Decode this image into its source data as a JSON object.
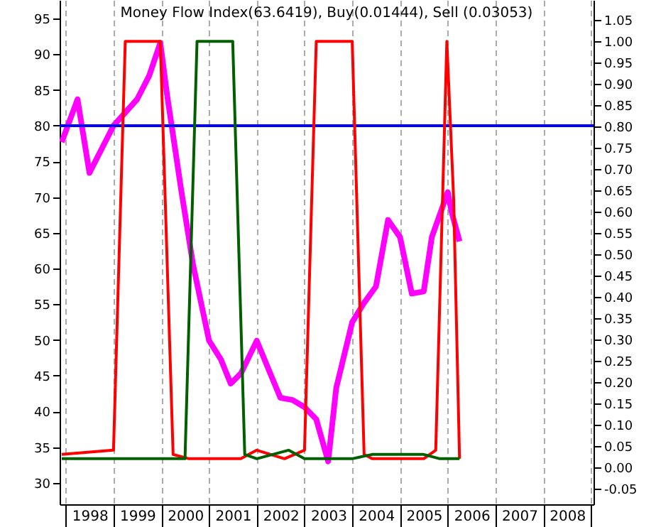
{
  "chart_data": {
    "type": "line",
    "title": "Money Flow Index(63.6419), Buy(0.01444), Sell (0.03053)",
    "xlim": [
      "1997-11-15",
      "2009-01-20"
    ],
    "xticks": [
      {
        "value": "1998-01-01",
        "label": null
      },
      {
        "value": "1998-07-02",
        "label": "1998"
      },
      {
        "value": "1999-01-01",
        "label": null
      },
      {
        "value": "1999-07-02",
        "label": "1999"
      },
      {
        "value": "2000-01-01",
        "label": null
      },
      {
        "value": "2000-07-02",
        "label": "2000"
      },
      {
        "value": "2001-01-01",
        "label": null
      },
      {
        "value": "2001-07-02",
        "label": "2001"
      },
      {
        "value": "2002-01-01",
        "label": null
      },
      {
        "value": "2002-07-02",
        "label": "2002"
      },
      {
        "value": "2003-01-01",
        "label": null
      },
      {
        "value": "2003-07-02",
        "label": "2003"
      },
      {
        "value": "2004-01-01",
        "label": null
      },
      {
        "value": "2004-07-02",
        "label": "2004"
      },
      {
        "value": "2005-01-01",
        "label": null
      },
      {
        "value": "2005-07-02",
        "label": "2005"
      },
      {
        "value": "2006-01-01",
        "label": null
      },
      {
        "value": "2006-07-02",
        "label": "2006"
      },
      {
        "value": "2007-01-01",
        "label": null
      },
      {
        "value": "2007-07-02",
        "label": "2007"
      },
      {
        "value": "2008-01-01",
        "label": null
      },
      {
        "value": "2008-07-02",
        "label": "2008"
      },
      {
        "value": "2009-01-01",
        "label": null
      }
    ],
    "ylim": [
      27,
      97.6
    ],
    "yticks": [
      30,
      35,
      40,
      45,
      50,
      55,
      60,
      65,
      70,
      75,
      80,
      85,
      90,
      95
    ],
    "y2lim": [
      -0.087,
      1.097
    ],
    "y2ticks": [
      {
        "value": -0.05,
        "label": "-0.05"
      },
      {
        "value": 0,
        "label": "0.00"
      },
      {
        "value": 0.05,
        "label": "0.05"
      },
      {
        "value": 0.1,
        "label": "0.10"
      },
      {
        "value": 0.15,
        "label": "0.15"
      },
      {
        "value": 0.2,
        "label": "0.20"
      },
      {
        "value": 0.25,
        "label": "0.25"
      },
      {
        "value": 0.3,
        "label": "0.30"
      },
      {
        "value": 0.35,
        "label": "0.35"
      },
      {
        "value": 0.4,
        "label": "0.40"
      },
      {
        "value": 0.45,
        "label": "0.45"
      },
      {
        "value": 0.5,
        "label": "0.50"
      },
      {
        "value": 0.55,
        "label": "0.55"
      },
      {
        "value": 0.6,
        "label": "0.60"
      },
      {
        "value": 0.65,
        "label": "0.65"
      },
      {
        "value": 0.7,
        "label": "0.70"
      },
      {
        "value": 0.75,
        "label": "0.75"
      },
      {
        "value": 0.8,
        "label": "0.80"
      },
      {
        "value": 0.85,
        "label": "0.85"
      },
      {
        "value": 0.9,
        "label": "0.90"
      },
      {
        "value": 0.95,
        "label": "0.95"
      },
      {
        "value": 1,
        "label": "1.00"
      },
      {
        "value": 1.05,
        "label": "1.05"
      }
    ],
    "grid": "x",
    "ref_lines": [
      {
        "axis": "y",
        "value": 80,
        "color": "#0000ff"
      }
    ],
    "series": [
      {
        "color": "#ff00ff",
        "x": [
          "1997-12",
          "1998-04",
          "1998-07",
          "1999-01",
          "1999-07",
          "1999-10",
          "1999-12-25",
          "2000-02-15",
          "2000-06",
          "2000-09",
          "2001-01",
          "2001-04",
          "2001-06-15",
          "2001-09",
          "2002-01",
          "2002-04",
          "2002-07",
          "2002-10",
          "2003-01",
          "2003-04",
          "2003-07",
          "2003-09",
          "2004-01",
          "2004-04",
          "2004-07",
          "2004-10",
          "2005-01",
          "2005-04",
          "2005-07",
          "2005-09",
          "2006-01",
          "2006-02",
          "2006-04"
        ],
        "values": [
          77.7,
          83.7,
          73.4,
          80.0,
          83.7,
          87.0,
          91.6,
          84.3,
          71.1,
          60.5,
          49.9,
          47.3,
          43.9,
          45.3,
          49.9,
          45.9,
          41.9,
          41.6,
          40.6,
          38.9,
          33.0,
          43.3,
          52.5,
          55.2,
          57.5,
          66.8,
          64.4,
          56.5,
          56.8,
          64.4,
          70.7,
          67.8,
          63.8
        ]
      },
      {
        "color": "#ff0000",
        "axis": "y2",
        "x": [
          "1997-12",
          "1999-01",
          "1999-04",
          "1999-12-25",
          "2000-04",
          "2000-08",
          "2001-09",
          "2002-01",
          "2002-08",
          "2003-01",
          "2003-04",
          "2004-01",
          "2004-04",
          "2004-06",
          "2005-07",
          "2005-10",
          "2005-12-25",
          "2006-02-15",
          "2006-04"
        ],
        "values": [
          0.03,
          0.04,
          1.0,
          1.0,
          0.03,
          0.02,
          0.02,
          0.04,
          0.02,
          0.04,
          1.0,
          1.0,
          0.03,
          0.02,
          0.02,
          0.04,
          1.0,
          0.63,
          0.02
        ]
      },
      {
        "color": "#006000",
        "axis": "y2",
        "x": [
          "1997-12",
          "2000-07",
          "2000-10",
          "2001-07",
          "2001-10",
          "2002-01",
          "2002-09",
          "2003-01",
          "2004-01",
          "2004-06",
          "2005-07",
          "2005-11",
          "2006-04"
        ],
        "values": [
          0.02,
          0.02,
          1.0,
          1.0,
          0.03,
          0.02,
          0.04,
          0.02,
          0.02,
          0.03,
          0.03,
          0.02,
          0.02
        ]
      }
    ]
  }
}
